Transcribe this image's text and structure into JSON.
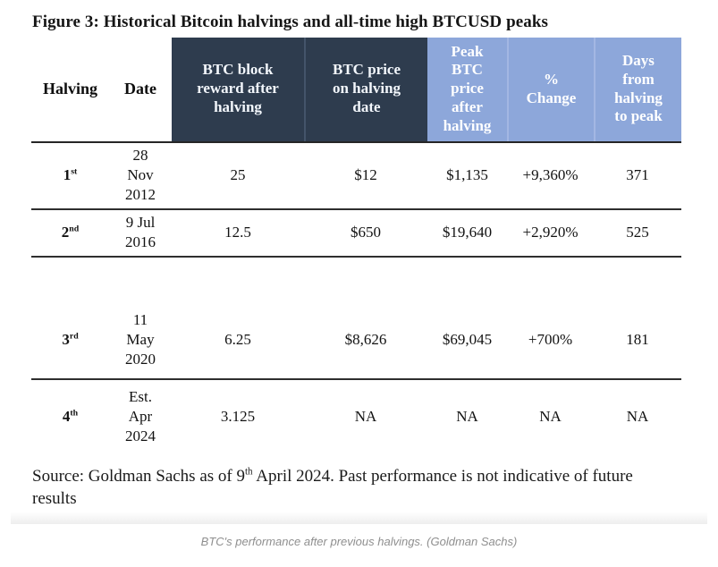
{
  "figure": {
    "title": "Figure 3: Historical Bitcoin halvings and all-time high BTCUSD peaks",
    "source": {
      "prefix": "Source: Goldman Sachs as of 9",
      "sup": "th",
      "suffix": " April 2024. Past performance is not indicative of future results"
    },
    "caption": "BTC's performance after previous halvings. (Goldman Sachs)"
  },
  "colors": {
    "dark_header": "#2e3c4e",
    "light_header": "#8da7da",
    "border": "#2e2e2e"
  },
  "table": {
    "headers": {
      "halving": "Halving",
      "date": "Date",
      "reward": "BTC block\nreward after\nhalving",
      "price": "BTC price\non halving\ndate",
      "peak": "Peak\nBTC\nprice\nafter\nhalving",
      "change": "%\nChange",
      "days": "Days\nfrom\nhalving\nto peak"
    },
    "rows": [
      {
        "ordinal": "1",
        "suffix": "st",
        "date": "28\nNov\n2012",
        "values": [
          "25",
          "$12",
          "$1,135",
          "+9,360%",
          "371"
        ]
      },
      {
        "ordinal": "2",
        "suffix": "nd",
        "date": "9 Jul\n2016",
        "values": [
          "12.5",
          "$650",
          "$19,640",
          "+2,920%",
          "525"
        ]
      },
      {
        "ordinal": "3",
        "suffix": "rd",
        "date": "11\nMay\n2020",
        "values": [
          "6.25",
          "$8,626",
          "$69,045",
          "+700%",
          "181"
        ]
      },
      {
        "ordinal": "4",
        "suffix": "th",
        "date": "Est.\nApr\n2024",
        "values": [
          "3.125",
          "NA",
          "NA",
          "NA",
          "NA"
        ]
      }
    ]
  },
  "chart_data": {
    "type": "table",
    "title": "Figure 3: Historical Bitcoin halvings and all-time high BTCUSD peaks",
    "columns": [
      "Halving",
      "Date",
      "BTC block reward after halving",
      "BTC price on halving date",
      "Peak BTC price after halving",
      "% Change",
      "Days from halving to peak"
    ],
    "rows": [
      [
        "1st",
        "28 Nov 2012",
        "25",
        "$12",
        "$1,135",
        "+9,360%",
        "371"
      ],
      [
        "2nd",
        "9 Jul 2016",
        "12.5",
        "$650",
        "$19,640",
        "+2,920%",
        "525"
      ],
      [
        "3rd",
        "11 May 2020",
        "6.25",
        "$8,626",
        "$69,045",
        "+700%",
        "181"
      ],
      [
        "4th",
        "Est. Apr 2024",
        "3.125",
        "NA",
        "NA",
        "NA",
        "NA"
      ]
    ],
    "source": "Source: Goldman Sachs as of 9th April 2024. Past performance is not indicative of future results",
    "caption": "BTC's performance after previous halvings. (Goldman Sachs)"
  }
}
